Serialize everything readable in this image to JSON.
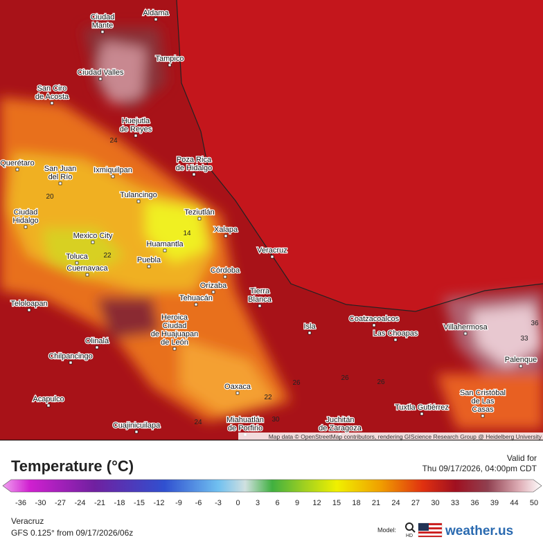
{
  "map": {
    "labels": [
      {
        "lines": [
          "Aldama"
        ]
      },
      {
        "lines": [
          "Ciudad",
          "Mante"
        ]
      },
      {
        "lines": [
          "Tampico"
        ]
      },
      {
        "lines": [
          "Ciudad Valles"
        ]
      },
      {
        "lines": [
          "San Ciro",
          "de Acosta"
        ]
      },
      {
        "lines": [
          "Huejutla",
          "de Reyes"
        ]
      },
      {
        "lines": [
          "Poza Rica",
          "de Hidalgo"
        ]
      },
      {
        "lines": [
          "San Juan",
          "del Río"
        ]
      },
      {
        "lines": [
          "Ixmiquilpan"
        ]
      },
      {
        "lines": [
          "Querétaro"
        ]
      },
      {
        "lines": [
          "Tulancingo"
        ]
      },
      {
        "lines": [
          "Teziutlán"
        ]
      },
      {
        "lines": [
          "Xalapa"
        ]
      },
      {
        "lines": [
          "Ciudad",
          "Hidalgo"
        ]
      },
      {
        "lines": [
          "Mexico City"
        ]
      },
      {
        "lines": [
          "Huamantla"
        ]
      },
      {
        "lines": [
          "Veracruz"
        ]
      },
      {
        "lines": [
          "Toluca"
        ]
      },
      {
        "lines": [
          "Puebla"
        ]
      },
      {
        "lines": [
          "Cuernavaca"
        ]
      },
      {
        "lines": [
          "Córdoba"
        ]
      },
      {
        "lines": [
          "Orizaba"
        ]
      },
      {
        "lines": [
          "Tierra",
          "Blanca"
        ]
      },
      {
        "lines": [
          "Tehuacán"
        ]
      },
      {
        "lines": [
          "Teloloapan"
        ]
      },
      {
        "lines": [
          "Heroica",
          "Ciudad",
          "de Huajuapan",
          "de León"
        ]
      },
      {
        "lines": [
          "Coatzacoalcos"
        ]
      },
      {
        "lines": [
          "Isla"
        ]
      },
      {
        "lines": [
          "Villahermosa"
        ]
      },
      {
        "lines": [
          "Las Choapas"
        ]
      },
      {
        "lines": [
          "Olinalá"
        ]
      },
      {
        "lines": [
          "Chilpancingo"
        ]
      },
      {
        "lines": [
          "Palenque"
        ]
      },
      {
        "lines": [
          "Oaxaca"
        ]
      },
      {
        "lines": [
          "San Cristóbal",
          "de Las",
          "Casas"
        ]
      },
      {
        "lines": [
          "Acapulco"
        ]
      },
      {
        "lines": [
          "Tuxtla Gutiérrez"
        ]
      },
      {
        "lines": [
          "Miahuatlán",
          "de Porfirio"
        ]
      },
      {
        "lines": [
          "Juchitán",
          "de Zaragoza"
        ]
      },
      {
        "lines": [
          "Cuajinicuilapa"
        ]
      }
    ],
    "contours": [
      "14",
      "33",
      "22",
      "26",
      "24",
      "30",
      "36",
      "26",
      "26",
      "22",
      "20",
      "24"
    ],
    "attribution": "Map data © OpenStreetMap contributors, rendering GIScience Research Group @ Heidelberg University"
  },
  "legend": {
    "title": "Temperature (°C)",
    "valid_label": "Valid for",
    "valid_time": "Thu 09/17/2026, 04:00pm CDT",
    "ticks": [
      -36,
      -30,
      -27,
      -24,
      -21,
      -18,
      -15,
      -12,
      -9,
      -6,
      -3,
      0,
      3,
      6,
      9,
      12,
      15,
      18,
      21,
      24,
      27,
      30,
      33,
      36,
      39,
      44,
      50
    ]
  },
  "footer": {
    "location": "Veracruz",
    "model_run": "GFS 0.125° from  09/17/2026/06z",
    "model_label": "Model:",
    "hd": "HD",
    "brand": "weather.us"
  }
}
